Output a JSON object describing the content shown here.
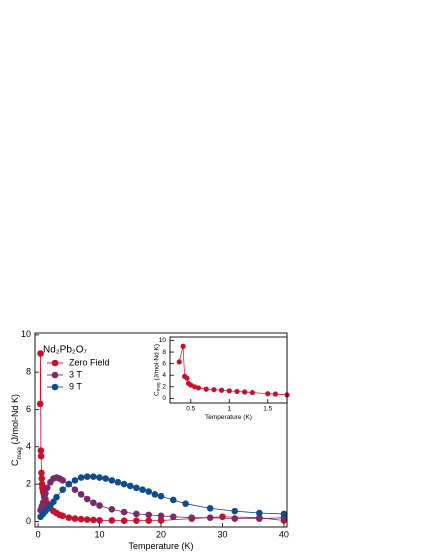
{
  "chart_data": [
    {
      "type": "line",
      "xlabel": "Temperature (K)",
      "ylabel": "C",
      "ylabel_subscript": "mag",
      "ylabel_unit": "(J/mol-Nd K)",
      "legend_title": "Nd₂Pb₂O₇",
      "xlim": [
        -0.5,
        40.5
      ],
      "ylim": [
        -0.3,
        10.1
      ],
      "xticks": [
        0,
        10,
        20,
        30,
        40
      ],
      "yticks": [
        0,
        2,
        4,
        6,
        8,
        10
      ],
      "series": [
        {
          "name": "Zero Field",
          "color": "#c8102e",
          "x": [
            0.35,
            0.4,
            0.45,
            0.5,
            0.55,
            0.6,
            0.65,
            0.7,
            0.8,
            0.9,
            1,
            1.2,
            1.4,
            1.6,
            1.8,
            2,
            2.5,
            3,
            3.5,
            4,
            5,
            6,
            7,
            8,
            9,
            10,
            12,
            14,
            16,
            18,
            20,
            25,
            30,
            36,
            40
          ],
          "values": [
            6.3,
            9.0,
            3.8,
            3.5,
            2.6,
            2.3,
            2.0,
            1.8,
            1.6,
            1.5,
            1.4,
            1.2,
            1.0,
            0.9,
            0.8,
            0.7,
            0.55,
            0.45,
            0.35,
            0.3,
            0.2,
            0.15,
            0.12,
            0.1,
            0.08,
            0.06,
            0.05,
            0.04,
            0.04,
            0.04,
            0.05,
            0.15,
            0.25,
            0.2,
            0.05
          ]
        },
        {
          "name": "3 T",
          "color": "#7a2a66",
          "x": [
            0.4,
            0.6,
            0.8,
            1,
            1.2,
            1.5,
            2,
            2.5,
            3,
            3.5,
            4,
            5,
            6,
            7,
            8,
            9,
            10,
            12,
            14,
            16,
            18,
            20,
            22,
            25,
            28,
            32,
            36,
            40
          ],
          "values": [
            0.6,
            0.8,
            1.0,
            1.3,
            1.5,
            1.8,
            2.1,
            2.3,
            2.35,
            2.3,
            2.2,
            2.0,
            1.7,
            1.45,
            1.2,
            1.0,
            0.85,
            0.65,
            0.5,
            0.4,
            0.35,
            0.3,
            0.25,
            0.2,
            0.2,
            0.15,
            0.15,
            0.2
          ]
        },
        {
          "name": "9 T",
          "color": "#0f4c8a",
          "x": [
            0.4,
            0.8,
            1.2,
            1.6,
            2,
            2.5,
            3,
            4,
            5,
            6,
            7,
            8,
            9,
            10,
            11,
            12,
            13,
            14,
            15,
            16,
            17,
            18,
            19,
            20,
            22,
            24,
            28,
            32,
            36,
            40
          ],
          "values": [
            0.25,
            0.4,
            0.55,
            0.7,
            0.85,
            1.05,
            1.3,
            1.7,
            2.0,
            2.2,
            2.35,
            2.4,
            2.4,
            2.35,
            2.3,
            2.2,
            2.1,
            2.0,
            1.9,
            1.8,
            1.7,
            1.6,
            1.45,
            1.35,
            1.15,
            0.95,
            0.7,
            0.55,
            0.45,
            0.4
          ]
        }
      ]
    },
    {
      "type": "line",
      "xlabel": "Temperature (K)",
      "ylabel": "C",
      "ylabel_subscript": "mag",
      "ylabel_unit": "(J/mol-Nd K)",
      "xlim": [
        0.23,
        1.75
      ],
      "ylim": [
        -0.8,
        10.6
      ],
      "xticks": [
        0.5,
        1,
        1.5
      ],
      "yticks": [
        0,
        2,
        4,
        6,
        8,
        10
      ],
      "series": [
        {
          "color": "#c8102e",
          "x": [
            0.35,
            0.4,
            0.42,
            0.45,
            0.47,
            0.5,
            0.55,
            0.6,
            0.7,
            0.8,
            0.9,
            1.0,
            1.1,
            1.2,
            1.3,
            1.5,
            1.6,
            1.75
          ],
          "values": [
            6.3,
            9,
            3.8,
            3.5,
            2.6,
            2.3,
            2.0,
            1.8,
            1.6,
            1.5,
            1.4,
            1.3,
            1.2,
            1.1,
            1.0,
            0.8,
            0.75,
            0.6
          ]
        }
      ]
    }
  ]
}
